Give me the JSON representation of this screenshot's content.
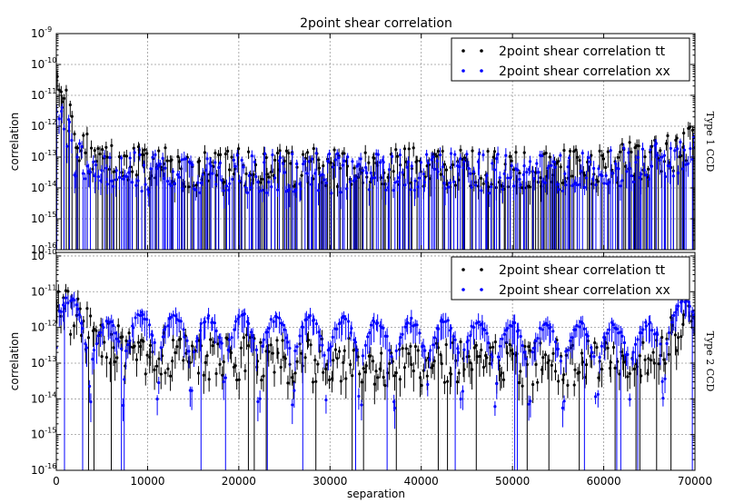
{
  "chart_data": {
    "title": "2point shear correlation",
    "xlabel": "separation",
    "xlim": [
      0,
      70000
    ],
    "x_ticks": [
      "0",
      "10000",
      "20000",
      "30000",
      "40000",
      "50000",
      "60000",
      "70000"
    ],
    "y_tick_mantissa": "10",
    "y_tick_exponents": [
      "-9",
      "-10",
      "-11",
      "-12",
      "-13",
      "-14",
      "-15",
      "-16"
    ],
    "y_tick_values": [
      1e-09,
      1e-10,
      1e-11,
      1e-12,
      1e-13,
      1e-14,
      1e-15,
      1e-16
    ],
    "yscale": "log",
    "grid": true,
    "panels": [
      {
        "type": "scatter",
        "side_label": "Type 1 CCD",
        "ylabel": "correlation",
        "ylim": [
          1e-16,
          1e-09
        ],
        "legend_position": "top-right",
        "series": [
          {
            "name": "2point shear correlation tt",
            "color": "#000000",
            "x": [
              0,
              2000,
              5000,
              10000,
              15000,
              20000,
              25000,
              30000,
              35000,
              40000,
              45000,
              50000,
              55000,
              60000,
              65000,
              68000,
              70000
            ],
            "y": [
              1e-10,
              3e-13,
              6e-14,
              5e-14,
              4e-14,
              5e-14,
              4e-14,
              5e-14,
              4e-14,
              5e-14,
              4e-14,
              4e-14,
              5e-14,
              6e-14,
              8e-14,
              1.5e-13,
              3e-13
            ]
          },
          {
            "name": "2point shear correlation xx",
            "color": "#0000ff",
            "x": [
              0,
              2000,
              5000,
              10000,
              15000,
              20000,
              25000,
              30000,
              35000,
              40000,
              45000,
              50000,
              55000,
              60000,
              65000,
              68000,
              70000
            ],
            "y": [
              1e-11,
              1e-13,
              4e-14,
              3e-14,
              3e-14,
              3e-14,
              3e-14,
              3e-14,
              3e-14,
              3e-14,
              3e-14,
              3e-14,
              3e-14,
              4e-14,
              6e-14,
              1e-13,
              2e-13
            ]
          }
        ]
      },
      {
        "type": "scatter",
        "side_label": "Type 2 CCD",
        "ylabel": "correlation",
        "ylim": [
          1e-16,
          1e-10
        ],
        "legend_position": "top-right",
        "series": [
          {
            "name": "2point shear correlation tt",
            "color": "#000000",
            "x": [
              0,
              2000,
              4000,
              10000,
              15000,
              20000,
              25000,
              30000,
              35000,
              40000,
              45000,
              50000,
              55000,
              60000,
              65000,
              68000,
              70000
            ],
            "y": [
              1e-11,
              2e-12,
              5e-13,
              2e-13,
              1.5e-13,
              1.5e-13,
              1.2e-13,
              1.2e-13,
              1e-13,
              1e-13,
              1e-13,
              1e-13,
              1e-13,
              1e-13,
              1e-13,
              1e-12,
              4e-12
            ]
          },
          {
            "name": "2point shear correlation xx",
            "color": "#0000ff",
            "x": [
              0,
              2000,
              4000,
              10000,
              15000,
              20000,
              25000,
              30000,
              35000,
              40000,
              45000,
              50000,
              55000,
              60000,
              65000,
              68000,
              70000
            ],
            "y": [
              8e-12,
              1.5e-12,
              4e-13,
              8e-13,
              6e-13,
              7e-13,
              6e-13,
              6e-13,
              5e-13,
              5e-13,
              5e-13,
              4e-13,
              4e-13,
              4e-13,
              4e-13,
              1.5e-12,
              5e-12
            ]
          }
        ]
      }
    ]
  }
}
